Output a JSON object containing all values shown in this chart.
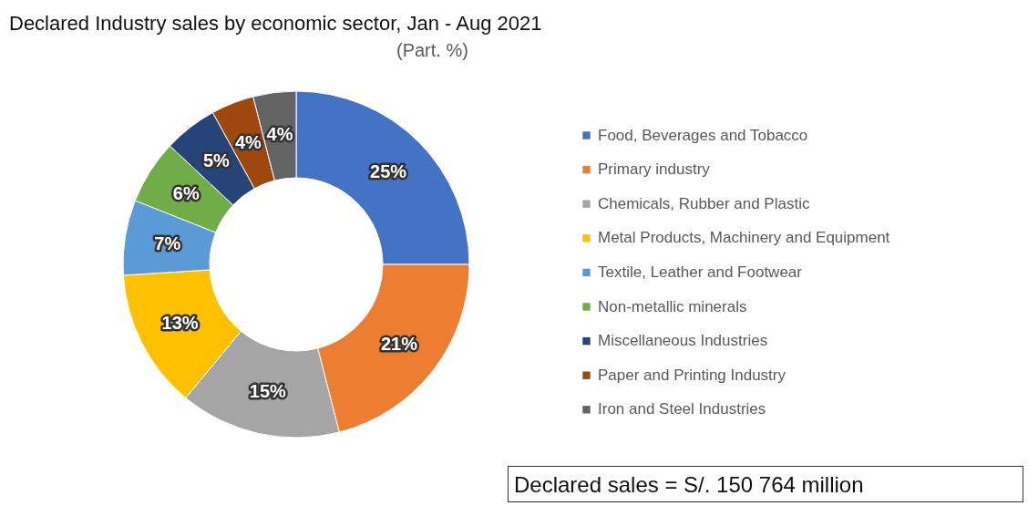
{
  "chart_data": {
    "type": "donut",
    "title": "Declared Industry sales by economic sector, Jan - Aug 2021",
    "subtitle": "(Part. %)",
    "categories": [
      "Food, Beverages and Tobacco",
      "Primary industry",
      "Chemicals, Rubber and Plastic",
      "Metal Products, Machinery and Equipment",
      "Textile, Leather and Footwear",
      "Non-metallic minerals",
      "Miscellaneous Industries",
      "Paper and Printing Industry",
      "Iron and Steel Industries"
    ],
    "values": [
      25,
      21,
      15,
      13,
      7,
      6,
      5,
      4,
      4
    ],
    "value_labels": [
      "25%",
      "21%",
      "15%",
      "13%",
      "7%",
      "6%",
      "5%",
      "4%",
      "4%"
    ],
    "colors": [
      "#4472c4",
      "#ed7d31",
      "#a5a5a5",
      "#ffc000",
      "#5b9bd5",
      "#70ad47",
      "#264478",
      "#9e480e",
      "#636363"
    ],
    "legend": "right",
    "annotations": [
      "Declared sales = S/. 150 764 million"
    ]
  }
}
